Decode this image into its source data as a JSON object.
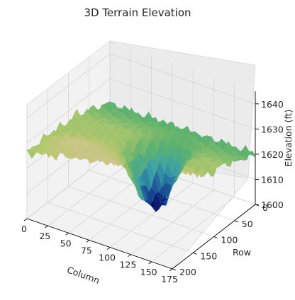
{
  "chart_data": {
    "type": "surface",
    "title": "3D Terrain Elevation",
    "xlabel": "Column",
    "ylabel": "Row",
    "zlabel": "Elevation (ft)",
    "colormap": "gist_earth",
    "xlim": [
      0,
      175
    ],
    "ylim": [
      0,
      200
    ],
    "zlim": [
      1600,
      1645
    ],
    "x_ticks": [
      0,
      25,
      50,
      75,
      100,
      125,
      150,
      175
    ],
    "y_ticks": [
      0,
      50,
      100,
      150,
      200
    ],
    "z_ticks": [
      1600,
      1610,
      1620,
      1630,
      1640
    ],
    "grid": true
  }
}
